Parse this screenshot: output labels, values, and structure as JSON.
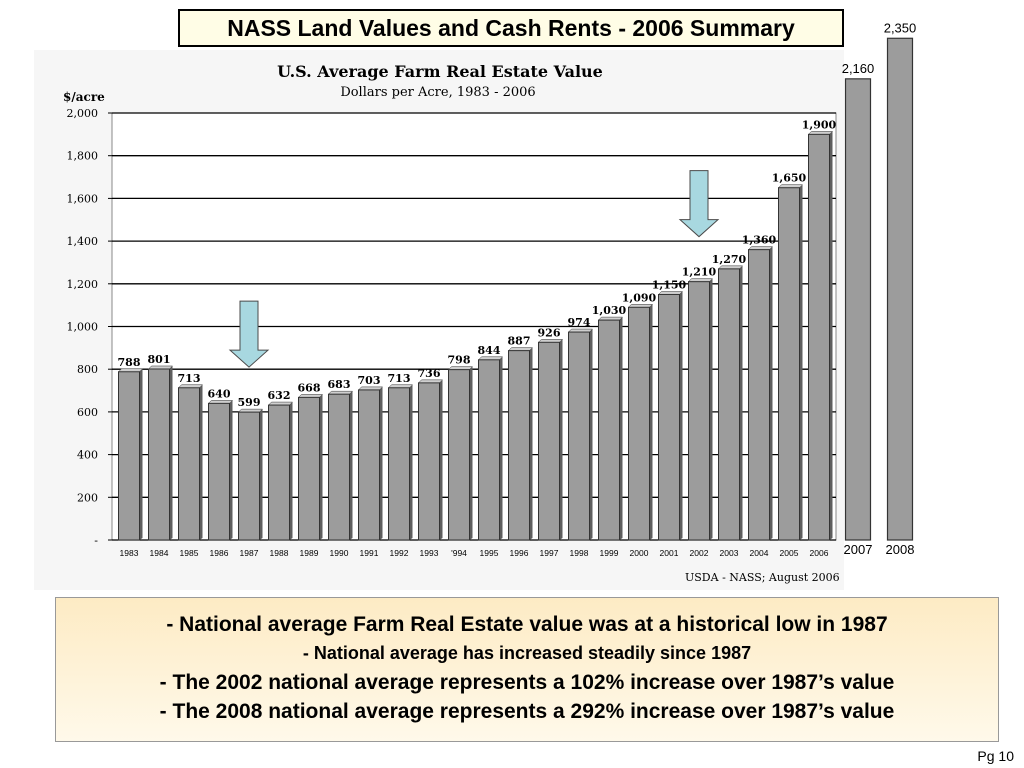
{
  "slide": {
    "title": "NASS Land Values and Cash Rents  - 2006 Summary",
    "page_number": "Pg 10"
  },
  "notes": [
    {
      "text": "- National average Farm Real Estate value was at a historical low in 1987",
      "small": false
    },
    {
      "text": "-  National average has increased steadily since 1987",
      "small": true
    },
    {
      "text": "- The 2002 national average represents a 102% increase over 1987’s value",
      "small": false
    },
    {
      "text": "- The 2008 national average represents a 292% increase over 1987’s value",
      "small": false
    }
  ],
  "colors": {
    "bar_fill": "#9c9c9c",
    "bar_edge": "#333333",
    "arrow_fill": "#a8d8e0",
    "notes_background": "#fdebc4"
  },
  "chart_data": {
    "type": "bar",
    "title": "U.S. Average Farm Real Estate Value",
    "subtitle": "Dollars per Acre, 1983 - 2006",
    "ylabel": "$/acre",
    "xlabel": "",
    "ylim": [
      0,
      2000
    ],
    "yticks": [
      0,
      200,
      400,
      600,
      800,
      1000,
      1200,
      1400,
      1600,
      1800,
      2000
    ],
    "ytick_labels": [
      "-",
      "200",
      "400",
      "600",
      "800",
      "1,000",
      "1,200",
      "1,400",
      "1,600",
      "1,800",
      "2,000"
    ],
    "grid": true,
    "source": "USDA - NASS; August 2006",
    "categories": [
      "1983",
      "1984",
      "1985",
      "1986",
      "1987",
      "1988",
      "1989",
      "1990",
      "1991",
      "1992",
      "1993",
      "'994",
      "1995",
      "1996",
      "1997",
      "1998",
      "1999",
      "2000",
      "2001",
      "2002",
      "2003",
      "2004",
      "2005",
      "2006"
    ],
    "values": [
      788,
      801,
      713,
      640,
      599,
      632,
      668,
      683,
      703,
      713,
      736,
      798,
      844,
      887,
      926,
      974,
      1030,
      1090,
      1150,
      1210,
      1270,
      1360,
      1650,
      1900
    ],
    "value_labels": [
      "788",
      "801",
      "713",
      "640",
      "599",
      "632",
      "668",
      "683",
      "703",
      "713",
      "736",
      "798",
      "844",
      "887",
      "926",
      "974",
      "1,030",
      "1,090",
      "1,150",
      "1,210",
      "1,270",
      "1,360",
      "1,650",
      "1,900"
    ],
    "highlight_arrows": [
      "1987",
      "2002"
    ],
    "extension": {
      "categories": [
        "2007",
        "2008"
      ],
      "values": [
        2160,
        2350
      ],
      "value_labels": [
        "2,160",
        "2,350"
      ]
    }
  }
}
